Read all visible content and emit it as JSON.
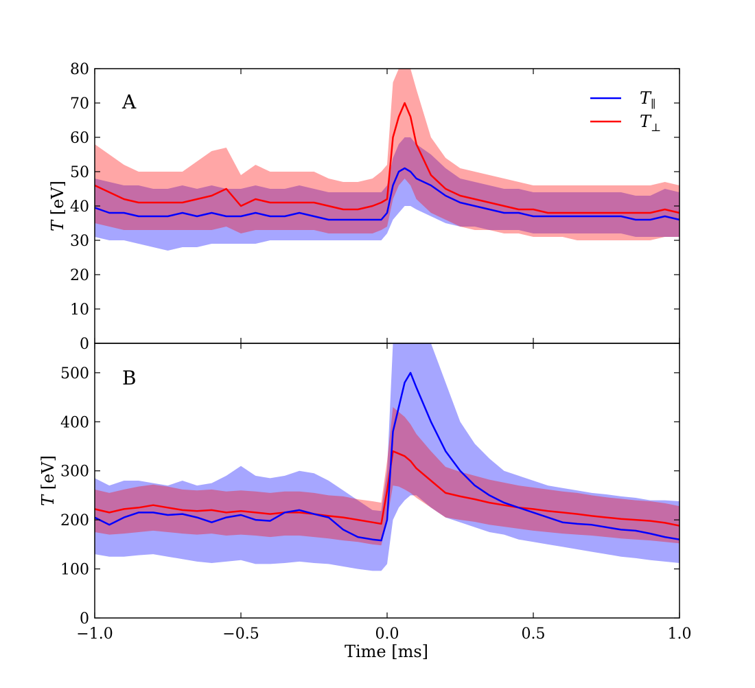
{
  "chart_data": [
    {
      "type": "line",
      "panel_label": "A",
      "xlabel": "",
      "ylabel": "T [eV]",
      "ylabel_var": "T",
      "ylabel_unit": "[eV]",
      "xlim": [
        -1.0,
        1.0
      ],
      "ylim": [
        0,
        80
      ],
      "x_ticks": [
        -1.0,
        -0.5,
        0.0,
        0.5,
        1.0
      ],
      "y_ticks": [
        0,
        10,
        20,
        30,
        40,
        50,
        60,
        70,
        80
      ],
      "y_tick_labels": [
        "0",
        "10",
        "20",
        "30",
        "40",
        "50",
        "60",
        "70",
        "80"
      ],
      "legend_position": "top-right",
      "legend": [
        {
          "name": "T",
          "sub": "∥",
          "color": "#0000ff"
        },
        {
          "name": "T",
          "sub": "⊥",
          "color": "#ff0000"
        }
      ],
      "series": [
        {
          "name": "T∥",
          "color": "#0000ff",
          "band_color": "#0000ff",
          "band_opacity": 0.35,
          "x": [
            -1.0,
            -0.95,
            -0.9,
            -0.85,
            -0.8,
            -0.75,
            -0.7,
            -0.65,
            -0.6,
            -0.55,
            -0.5,
            -0.45,
            -0.4,
            -0.35,
            -0.3,
            -0.25,
            -0.2,
            -0.15,
            -0.1,
            -0.05,
            -0.02,
            0.0,
            0.02,
            0.04,
            0.06,
            0.08,
            0.1,
            0.15,
            0.2,
            0.25,
            0.3,
            0.35,
            0.4,
            0.45,
            0.5,
            0.55,
            0.6,
            0.65,
            0.7,
            0.75,
            0.8,
            0.85,
            0.9,
            0.95,
            1.0
          ],
          "values": [
            39.5,
            38,
            38,
            37,
            37,
            37,
            38,
            37,
            38,
            37,
            37,
            38,
            37,
            37,
            38,
            37,
            36,
            36,
            36,
            36,
            36,
            38,
            46,
            50,
            51,
            50,
            48,
            46,
            43,
            41,
            40,
            39,
            38,
            38,
            37,
            37,
            37,
            37,
            37,
            37,
            37,
            36,
            36,
            37,
            36
          ],
          "lower": [
            31,
            30,
            30,
            29,
            28,
            27,
            28,
            28,
            29,
            29,
            29,
            29,
            30,
            30,
            30,
            30,
            30,
            30,
            30,
            30,
            30,
            32,
            36,
            38,
            40,
            40,
            39,
            37,
            35,
            34,
            34,
            33,
            33,
            33,
            32,
            32,
            32,
            32,
            32,
            32,
            32,
            31,
            31,
            31,
            31
          ],
          "upper": [
            48,
            47,
            46,
            46,
            45,
            45,
            46,
            45,
            46,
            45,
            45,
            46,
            45,
            45,
            46,
            45,
            44,
            44,
            44,
            44,
            44,
            46,
            54,
            58,
            60,
            60,
            58,
            55,
            51,
            48,
            47,
            46,
            45,
            45,
            44,
            44,
            44,
            44,
            44,
            44,
            44,
            43,
            43,
            45,
            44
          ]
        },
        {
          "name": "T⊥",
          "color": "#ff0000",
          "band_color": "#ff0000",
          "band_opacity": 0.35,
          "x": [
            -1.0,
            -0.95,
            -0.9,
            -0.85,
            -0.8,
            -0.75,
            -0.7,
            -0.65,
            -0.6,
            -0.55,
            -0.5,
            -0.45,
            -0.4,
            -0.35,
            -0.3,
            -0.25,
            -0.2,
            -0.15,
            -0.1,
            -0.05,
            -0.02,
            0.0,
            0.02,
            0.04,
            0.06,
            0.08,
            0.1,
            0.15,
            0.2,
            0.25,
            0.3,
            0.35,
            0.4,
            0.45,
            0.5,
            0.55,
            0.6,
            0.65,
            0.7,
            0.75,
            0.8,
            0.85,
            0.9,
            0.95,
            1.0
          ],
          "values": [
            46,
            44,
            42,
            41,
            41,
            41,
            41,
            42,
            43,
            45,
            40,
            42,
            41,
            41,
            41,
            41,
            40,
            39,
            39,
            40,
            41,
            42,
            60,
            66,
            70,
            66,
            58,
            49,
            45,
            43,
            42,
            41,
            40,
            39,
            39,
            38,
            38,
            38,
            38,
            38,
            38,
            38,
            38,
            39,
            38
          ],
          "lower": [
            35,
            34,
            33,
            33,
            33,
            33,
            33,
            33,
            33,
            34,
            32,
            33,
            33,
            33,
            33,
            33,
            32,
            32,
            32,
            32,
            33,
            34,
            42,
            46,
            48,
            46,
            42,
            38,
            36,
            34,
            33,
            33,
            32,
            32,
            31,
            31,
            31,
            30,
            30,
            30,
            30,
            30,
            30,
            31,
            31
          ],
          "upper": [
            58,
            55,
            52,
            50,
            50,
            50,
            50,
            53,
            56,
            57,
            49,
            52,
            50,
            50,
            50,
            50,
            48,
            47,
            47,
            48,
            50,
            52,
            76,
            82,
            86,
            82,
            74,
            60,
            54,
            51,
            50,
            49,
            48,
            47,
            46,
            46,
            46,
            46,
            46,
            46,
            46,
            46,
            46,
            47,
            46
          ]
        }
      ]
    },
    {
      "type": "line",
      "panel_label": "B",
      "xlabel": "Time [ms]",
      "ylabel": "T [eV]",
      "ylabel_var": "T",
      "ylabel_unit": "[eV]",
      "xlim": [
        -1.0,
        1.0
      ],
      "ylim": [
        0,
        560
      ],
      "x_ticks": [
        -1.0,
        -0.5,
        0.0,
        0.5,
        1.0
      ],
      "x_tick_labels": [
        "−1.0",
        "−0.5",
        "0.0",
        "0.5",
        "1.0"
      ],
      "y_ticks": [
        0,
        100,
        200,
        300,
        400,
        500
      ],
      "y_tick_labels": [
        "0",
        "100",
        "200",
        "300",
        "400",
        "500"
      ],
      "series": [
        {
          "name": "T∥",
          "color": "#0000ff",
          "band_color": "#0000ff",
          "band_opacity": 0.35,
          "x": [
            -1.0,
            -0.95,
            -0.9,
            -0.85,
            -0.8,
            -0.75,
            -0.7,
            -0.65,
            -0.6,
            -0.55,
            -0.5,
            -0.45,
            -0.4,
            -0.35,
            -0.3,
            -0.25,
            -0.2,
            -0.15,
            -0.1,
            -0.05,
            -0.02,
            0.0,
            0.02,
            0.04,
            0.06,
            0.08,
            0.1,
            0.15,
            0.2,
            0.25,
            0.3,
            0.35,
            0.4,
            0.45,
            0.5,
            0.55,
            0.6,
            0.65,
            0.7,
            0.75,
            0.8,
            0.85,
            0.9,
            0.95,
            1.0
          ],
          "values": [
            205,
            190,
            205,
            215,
            215,
            210,
            212,
            205,
            195,
            205,
            210,
            200,
            198,
            215,
            220,
            212,
            205,
            180,
            165,
            160,
            158,
            200,
            380,
            430,
            480,
            500,
            470,
            400,
            340,
            300,
            270,
            250,
            235,
            225,
            215,
            205,
            195,
            192,
            190,
            185,
            180,
            178,
            172,
            165,
            160
          ],
          "lower": [
            130,
            125,
            125,
            128,
            130,
            125,
            120,
            115,
            112,
            115,
            118,
            110,
            110,
            112,
            115,
            112,
            110,
            105,
            100,
            96,
            96,
            110,
            200,
            225,
            240,
            250,
            250,
            225,
            205,
            195,
            185,
            175,
            170,
            160,
            155,
            150,
            145,
            140,
            135,
            130,
            125,
            122,
            118,
            115,
            112
          ],
          "upper": [
            285,
            270,
            280,
            280,
            275,
            270,
            280,
            270,
            275,
            290,
            310,
            290,
            285,
            290,
            300,
            295,
            280,
            260,
            240,
            220,
            218,
            300,
            560,
            560,
            560,
            560,
            560,
            560,
            480,
            400,
            355,
            325,
            300,
            290,
            280,
            270,
            265,
            260,
            255,
            252,
            248,
            245,
            240,
            240,
            238
          ]
        },
        {
          "name": "T⊥",
          "color": "#ff0000",
          "band_color": "#ff0000",
          "band_opacity": 0.35,
          "x": [
            -1.0,
            -0.95,
            -0.9,
            -0.85,
            -0.8,
            -0.75,
            -0.7,
            -0.65,
            -0.6,
            -0.55,
            -0.5,
            -0.45,
            -0.4,
            -0.35,
            -0.3,
            -0.25,
            -0.2,
            -0.15,
            -0.1,
            -0.05,
            -0.02,
            0.0,
            0.02,
            0.04,
            0.06,
            0.08,
            0.1,
            0.15,
            0.2,
            0.25,
            0.3,
            0.35,
            0.4,
            0.45,
            0.5,
            0.55,
            0.6,
            0.65,
            0.7,
            0.75,
            0.8,
            0.85,
            0.9,
            0.95,
            1.0
          ],
          "values": [
            222,
            215,
            222,
            225,
            230,
            225,
            220,
            218,
            220,
            215,
            218,
            215,
            212,
            215,
            215,
            212,
            208,
            205,
            200,
            195,
            192,
            260,
            340,
            335,
            330,
            320,
            305,
            280,
            255,
            248,
            242,
            235,
            230,
            225,
            222,
            218,
            215,
            212,
            208,
            205,
            202,
            200,
            198,
            194,
            188
          ],
          "lower": [
            175,
            170,
            172,
            175,
            178,
            175,
            172,
            170,
            172,
            168,
            170,
            168,
            165,
            168,
            168,
            165,
            162,
            158,
            155,
            150,
            148,
            200,
            270,
            268,
            262,
            255,
            245,
            225,
            205,
            200,
            196,
            190,
            186,
            182,
            178,
            175,
            172,
            170,
            168,
            165,
            162,
            160,
            158,
            155,
            152
          ],
          "upper": [
            262,
            255,
            262,
            268,
            272,
            268,
            262,
            260,
            262,
            258,
            260,
            258,
            255,
            258,
            258,
            255,
            250,
            248,
            242,
            238,
            235,
            320,
            430,
            420,
            410,
            395,
            375,
            340,
            308,
            298,
            290,
            282,
            276,
            270,
            266,
            262,
            258,
            255,
            250,
            246,
            243,
            240,
            238,
            234,
            228
          ]
        }
      ]
    }
  ]
}
